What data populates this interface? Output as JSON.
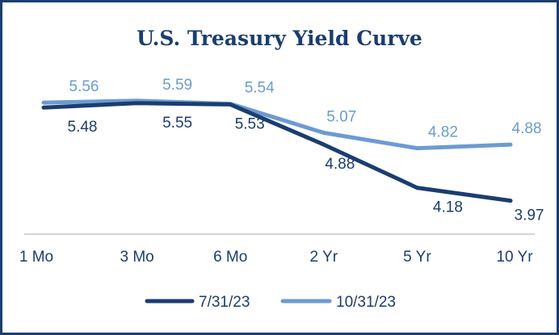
{
  "chart_data": {
    "type": "line",
    "title": "U.S. Treasury Yield Curve",
    "categories": [
      "1 Mo",
      "3 Mo",
      "6 Mo",
      "2 Yr",
      "5 Yr",
      "10 Yr"
    ],
    "series": [
      {
        "name": "7/31/23",
        "color": "#1b3d70",
        "values": [
          5.48,
          5.55,
          5.53,
          4.88,
          4.18,
          3.97
        ]
      },
      {
        "name": "10/31/23",
        "color": "#6b9bd2",
        "values": [
          5.56,
          5.59,
          5.54,
          5.07,
          4.82,
          4.88
        ]
      }
    ],
    "legend_position": "bottom",
    "grid": false,
    "ylim": [
      3.9,
      5.6
    ]
  }
}
